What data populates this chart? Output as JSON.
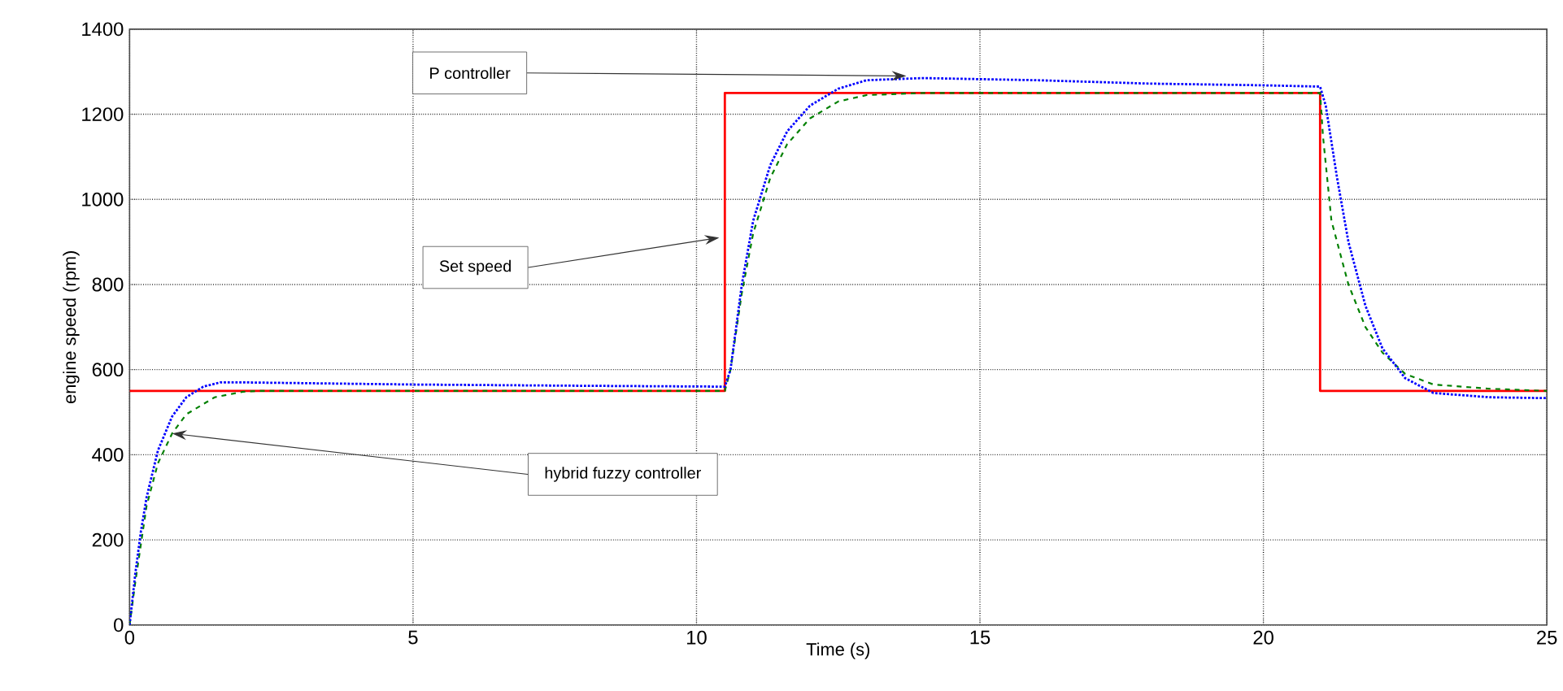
{
  "chart_data": {
    "type": "line",
    "xlabel": "Time (s)",
    "ylabel": "engine speed (rpm)",
    "xlim": [
      0,
      25
    ],
    "ylim": [
      0,
      1400
    ],
    "xticks": [
      0,
      5,
      10,
      15,
      20,
      25
    ],
    "yticks": [
      0,
      200,
      400,
      600,
      800,
      1000,
      1200,
      1400
    ],
    "grid": true,
    "marker": "none",
    "series": [
      {
        "color": "#ff0000",
        "line_style": "solid",
        "x": [
          0,
          10.5,
          10.5,
          21,
          21,
          25
        ],
        "values": [
          550,
          550,
          1250,
          1250,
          550,
          550
        ]
      },
      {
        "color": "#008000",
        "line_style": "dashed",
        "x": [
          0,
          0.1,
          0.3,
          0.5,
          0.75,
          1,
          1.5,
          2,
          2.3,
          5,
          8,
          10.5,
          10.6,
          10.8,
          11,
          11.3,
          11.6,
          12,
          12.5,
          13,
          14,
          17,
          21,
          21.05,
          21.2,
          21.5,
          21.8,
          22.1,
          22.5,
          23,
          24,
          25
        ],
        "values": [
          0,
          100,
          280,
          380,
          450,
          495,
          535,
          548,
          550,
          550,
          550,
          550,
          600,
          780,
          920,
          1050,
          1130,
          1190,
          1230,
          1245,
          1250,
          1250,
          1250,
          1150,
          950,
          800,
          700,
          640,
          590,
          565,
          555,
          550
        ]
      },
      {
        "color": "#0000ff",
        "line_style": "dotted",
        "x": [
          0,
          0.1,
          0.2,
          0.3,
          0.5,
          0.75,
          1,
          1.3,
          1.6,
          2,
          5,
          8,
          10.5,
          10.6,
          10.8,
          11,
          11.3,
          11.6,
          12,
          12.5,
          13,
          14,
          16,
          18,
          20,
          21,
          21.1,
          21.3,
          21.5,
          21.8,
          22.1,
          22.5,
          23,
          24,
          25
        ],
        "values": [
          0,
          120,
          220,
          300,
          410,
          490,
          535,
          560,
          570,
          570,
          565,
          562,
          560,
          600,
          800,
          950,
          1080,
          1160,
          1220,
          1260,
          1280,
          1285,
          1280,
          1272,
          1268,
          1265,
          1220,
          1050,
          900,
          750,
          650,
          580,
          545,
          535,
          533
        ]
      }
    ],
    "annotations": [
      {
        "text": "P controller",
        "x": 13.7,
        "y": 1290
      },
      {
        "text": "Set speed",
        "x": 10.4,
        "y": 910
      },
      {
        "text": "hybrid fuzzy controller",
        "x": 0.75,
        "y": 450
      }
    ]
  }
}
